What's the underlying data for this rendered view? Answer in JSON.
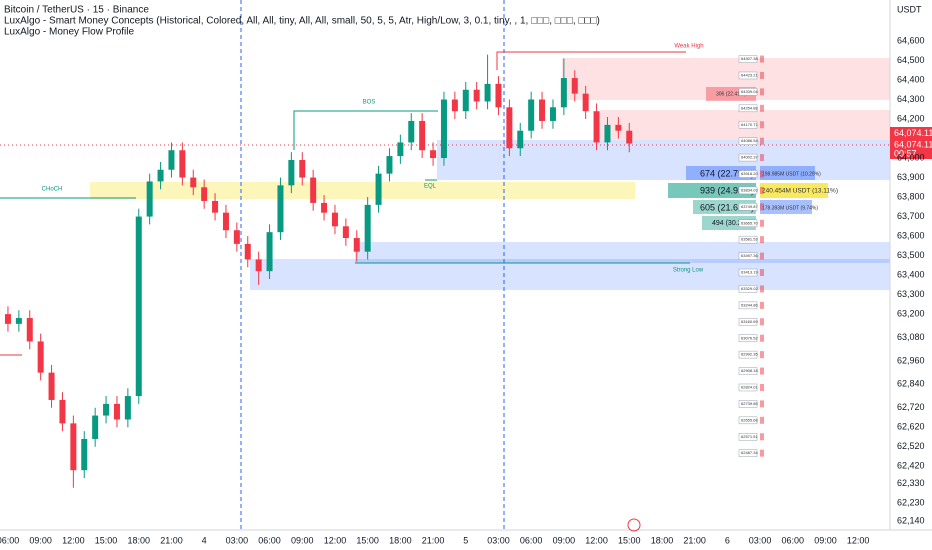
{
  "chart_data": {
    "type": "candlestick",
    "title": "Bitcoin / TetherUS · 15 · Binance",
    "indicators": [
      "LuxAlgo - Smart Money Concepts (Historical, Colored, All, All, tiny, All, All, small, 50, 5, 5, Atr, High/Low, 3, 0.1, tiny, , 1, □□□, □□□, □□□)",
      "LuxAlgo - Money Flow Profile"
    ],
    "y_unit": "USDT",
    "up_color": "#089981",
    "down_color": "#f23645",
    "x": [
      -1,
      0,
      1,
      2,
      3,
      4,
      5,
      6,
      7,
      8,
      9,
      10,
      11,
      12,
      13,
      14,
      15,
      16,
      17,
      18,
      19,
      20,
      21,
      22,
      23,
      24,
      25,
      26,
      27,
      28,
      29,
      30,
      31,
      32,
      33,
      34,
      35,
      36,
      37,
      38,
      39,
      40,
      41,
      42,
      43,
      44,
      45,
      46,
      47,
      48,
      49,
      50,
      51,
      52,
      53,
      54,
      55,
      56,
      57
    ],
    "open": [
      63250,
      63200,
      63150,
      63180,
      63060,
      62900,
      62760,
      62640,
      62400,
      62560,
      62680,
      62740,
      62660,
      62780,
      63700,
      63880,
      63940,
      64040,
      63900,
      63850,
      63780,
      63720,
      63630,
      63560,
      63480,
      63420,
      63620,
      63860,
      63990,
      63900,
      63770,
      63720,
      63650,
      63590,
      63520,
      63760,
      63920,
      64010,
      64080,
      64190,
      64040,
      64000,
      64300,
      64240,
      64350,
      64290,
      64380,
      64260,
      64050,
      64140,
      64300,
      64190,
      64260,
      64410,
      64330,
      64240,
      64080,
      64170,
      64140
    ],
    "high": [
      63290,
      63240,
      63220,
      63220,
      63100,
      62940,
      62800,
      62680,
      62600,
      62720,
      62780,
      62780,
      62820,
      63740,
      63920,
      63980,
      64080,
      64080,
      63940,
      63890,
      63820,
      63760,
      63670,
      63600,
      63520,
      63660,
      63900,
      64030,
      64030,
      63940,
      63810,
      63760,
      63690,
      63630,
      63800,
      63960,
      64050,
      64120,
      64230,
      64230,
      64080,
      64340,
      64340,
      64390,
      64390,
      64530,
      64420,
      64300,
      64180,
      64340,
      64340,
      64300,
      64510,
      64450,
      64370,
      64280,
      64210,
      64210,
      64180
    ],
    "low": [
      63160,
      63110,
      63110,
      63020,
      62860,
      62720,
      62600,
      62310,
      62360,
      62520,
      62640,
      62620,
      62620,
      62740,
      63660,
      63840,
      63900,
      63860,
      63810,
      63740,
      63680,
      63590,
      63520,
      63440,
      63350,
      63380,
      63580,
      63820,
      63860,
      63730,
      63680,
      63610,
      63550,
      63470,
      63480,
      63720,
      63880,
      63970,
      64040,
      64000,
      63960,
      63960,
      64200,
      64200,
      64250,
      64250,
      64220,
      64010,
      64010,
      64100,
      64150,
      64150,
      64220,
      64290,
      64200,
      64040,
      64040,
      64100,
      64030
    ],
    "close": [
      63200,
      63150,
      63180,
      63060,
      62900,
      62760,
      62640,
      62400,
      62560,
      62680,
      62740,
      62660,
      62780,
      63700,
      63880,
      63940,
      64040,
      63900,
      63850,
      63780,
      63720,
      63630,
      63560,
      63480,
      63420,
      63620,
      63860,
      63990,
      63900,
      63770,
      63720,
      63650,
      63590,
      63520,
      63760,
      63920,
      64010,
      64080,
      64190,
      64040,
      64000,
      64300,
      64240,
      64350,
      64290,
      64380,
      64260,
      64050,
      64140,
      64300,
      64190,
      64260,
      64410,
      64330,
      64240,
      64080,
      64170,
      64140,
      64074.11
    ],
    "xlim": [
      -0.73,
      80.92
    ],
    "xticks": [
      {
        "value": 0,
        "label": "06:00"
      },
      {
        "value": 3,
        "label": "09:00"
      },
      {
        "value": 6,
        "label": "12:00"
      },
      {
        "value": 9,
        "label": "15:00"
      },
      {
        "value": 12,
        "label": "18:00"
      },
      {
        "value": 15,
        "label": "21:00"
      },
      {
        "value": 18,
        "label": "4"
      },
      {
        "value": 21,
        "label": "03:00"
      },
      {
        "value": 24,
        "label": "06:00"
      },
      {
        "value": 27,
        "label": "09:00"
      },
      {
        "value": 30,
        "label": "12:00"
      },
      {
        "value": 33,
        "label": "15:00"
      },
      {
        "value": 36,
        "label": "18:00"
      },
      {
        "value": 39,
        "label": "21:00"
      },
      {
        "value": 42,
        "label": "5"
      },
      {
        "value": 45,
        "label": "03:00"
      },
      {
        "value": 48,
        "label": "06:00"
      },
      {
        "value": 51,
        "label": "09:00"
      },
      {
        "value": 54,
        "label": "12:00"
      },
      {
        "value": 57,
        "label": "15:00"
      },
      {
        "value": 60,
        "label": "18:00"
      },
      {
        "value": 63,
        "label": "21:00"
      },
      {
        "value": 66,
        "label": "6"
      },
      {
        "value": 69,
        "label": "03:00"
      },
      {
        "value": 72,
        "label": "06:00"
      },
      {
        "value": 75,
        "label": "09:00"
      },
      {
        "value": 78,
        "label": "12:00"
      }
    ],
    "ylim": [
      62073,
      64810
    ],
    "yticks": [
      {
        "value": 64600,
        "label": "64,600"
      },
      {
        "value": 64500,
        "label": "64,500"
      },
      {
        "value": 64400,
        "label": "64,400"
      },
      {
        "value": 64300,
        "label": "64,300"
      },
      {
        "value": 64200,
        "label": "64,200"
      },
      {
        "value": 64000,
        "label": "64,000"
      },
      {
        "value": 63900,
        "label": "63,900"
      },
      {
        "value": 63800,
        "label": "63,800"
      },
      {
        "value": 63700,
        "label": "63,700"
      },
      {
        "value": 63600,
        "label": "63,600"
      },
      {
        "value": 63500,
        "label": "63,500"
      },
      {
        "value": 63400,
        "label": "63,400"
      },
      {
        "value": 63300,
        "label": "63,300"
      },
      {
        "value": 63200,
        "label": "63,200"
      },
      {
        "value": 63080,
        "label": "63,080"
      },
      {
        "value": 62960,
        "label": "62,960"
      },
      {
        "value": 62840,
        "label": "62,840"
      },
      {
        "value": 62720,
        "label": "62,720"
      },
      {
        "value": 62620,
        "label": "62,620"
      },
      {
        "value": 62520,
        "label": "62,520"
      },
      {
        "value": 62420,
        "label": "62,420"
      },
      {
        "value": 62330,
        "label": "62,330"
      },
      {
        "value": 62230,
        "label": "62,230"
      },
      {
        "value": 62140,
        "label": "62,140"
      }
    ],
    "grid": false,
    "last_price_label": "64,074.11",
    "countdown": "00:57",
    "annotations": {
      "bos": "BOS",
      "choch": "CHoCH",
      "weak_high": "Weak High",
      "strong_low": "Strong Low",
      "eql": "EQL"
    },
    "profile": {
      "levels": [
        "64507.38",
        "64423.21",
        "64339.04",
        "64254.88",
        "64170.71",
        "64086.54",
        "64002.37",
        "63918.20",
        "63834.03",
        "63749.87",
        "63665.70",
        "63581.53",
        "63497.36",
        "63413.19",
        "63329.02",
        "63244.86",
        "63160.69",
        "63076.52",
        "62992.35",
        "62908.18",
        "62824.01",
        "62739.85",
        "62655.68",
        "62571.51",
        "62487.34"
      ],
      "left_labels": [
        "306 (22.41%)",
        "674 (22.79%)",
        "939 (24.93%)",
        "605 (21.61%)",
        "494 (30.29%)"
      ],
      "right_labels": [
        "198.985M USDT (10.29%)",
        "240.454M USDT (13.11%)",
        "178.393M USDT (9.74%)"
      ]
    }
  }
}
